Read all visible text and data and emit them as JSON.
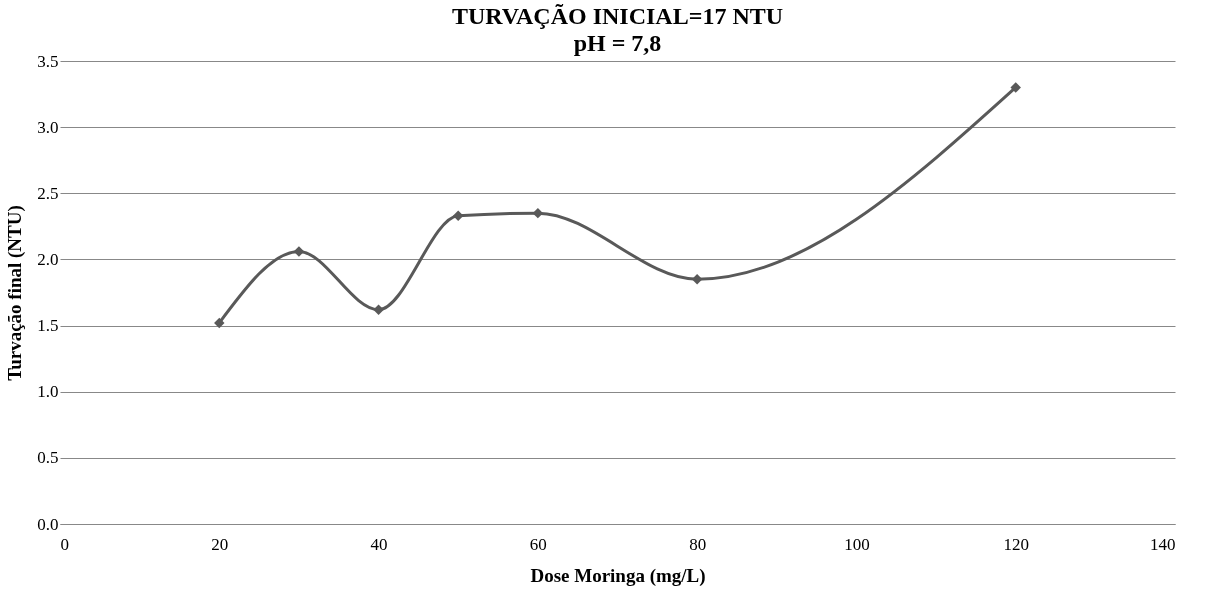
{
  "chart_data": {
    "type": "line",
    "title": "TURVAÇÃO INICIAL=17 NTU",
    "subtitle": "pH = 7,8",
    "xlabel": "Dose Moringa (mg/L)",
    "ylabel": "Turvação final (NTU)",
    "x": [
      20,
      30,
      40,
      50,
      60,
      80,
      120
    ],
    "series": [
      {
        "color": "#595959",
        "values": [
          1.52,
          2.06,
          1.62,
          2.33,
          2.35,
          1.85,
          3.3
        ]
      }
    ],
    "xlim": [
      0,
      140
    ],
    "xticks": [
      0,
      20,
      40,
      60,
      80,
      100,
      120,
      140
    ],
    "ylim": [
      0,
      3.5
    ],
    "yticks": [
      {
        "value": 0,
        "label": "0.0"
      },
      0.5,
      {
        "value": 1,
        "label": "1.0"
      },
      1.5,
      {
        "value": 2,
        "label": "2.0"
      },
      2.5,
      {
        "value": 3,
        "label": "3.0"
      },
      3.5
    ],
    "grid": "y",
    "marker": "diamond",
    "line_style": "solid"
  }
}
